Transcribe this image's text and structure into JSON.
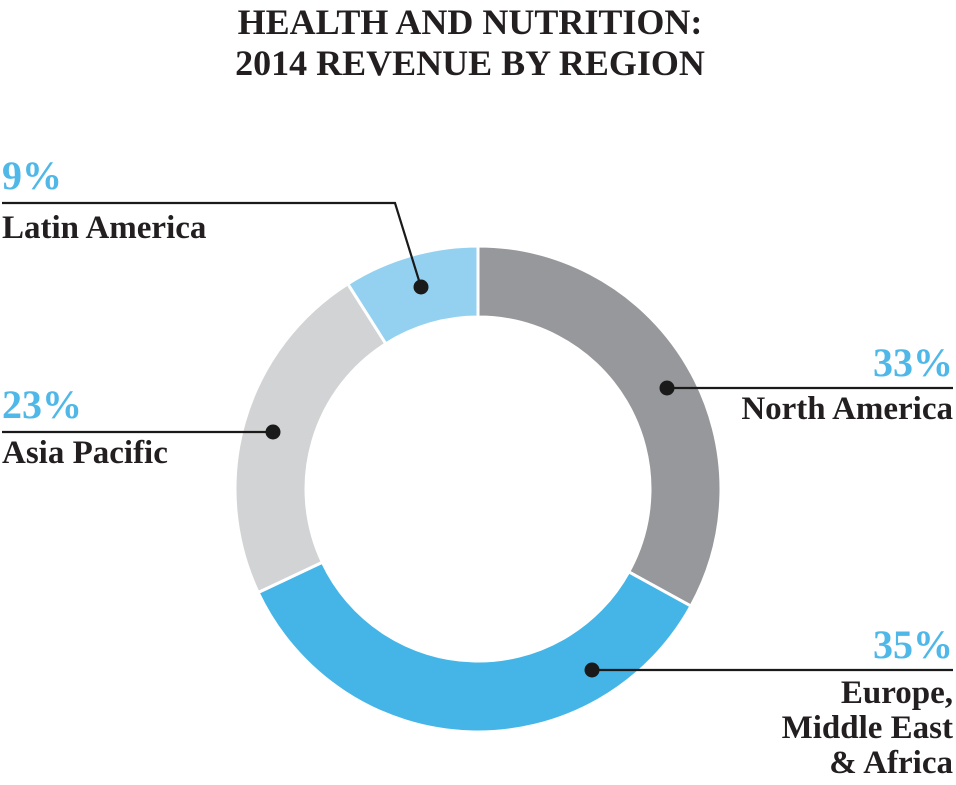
{
  "title": {
    "line1": "HEALTH AND NUTRITION:",
    "line2": "2014 REVENUE BY REGION"
  },
  "chart_data": {
    "type": "pie",
    "subtype": "donut",
    "title": "HEALTH AND NUTRITION: 2014 REVENUE BY REGION",
    "start_angle_deg": 0,
    "direction": "clockwise",
    "legend_position": "callouts",
    "segments": [
      {
        "label": "North America",
        "value_pct": 33,
        "percent_label": "33%",
        "color": "#97989b"
      },
      {
        "label": "Europe, Middle East & Africa",
        "value_pct": 35,
        "percent_label": "35%",
        "color": "#44b5e6"
      },
      {
        "label": "Asia Pacific",
        "value_pct": 23,
        "percent_label": "23%",
        "color": "#d1d3d4"
      },
      {
        "label": "Latin America",
        "value_pct": 9,
        "percent_label": "9%",
        "color": "#94d1f0"
      }
    ]
  },
  "callouts": {
    "latin_america": {
      "pct": "9%",
      "label": "Latin America"
    },
    "asia_pacific": {
      "pct": "23%",
      "label": "Asia Pacific"
    },
    "north_america": {
      "pct": "33%",
      "label": "North America"
    },
    "emea": {
      "pct": "35%",
      "label_line1": "Europe,",
      "label_line2": "Middle East",
      "label_line3": "& Africa"
    }
  },
  "colors": {
    "percent_text": "#4fb8e8",
    "dark_text": "#231f20",
    "leader_line": "#1a1a1a",
    "background": "#ffffff"
  }
}
